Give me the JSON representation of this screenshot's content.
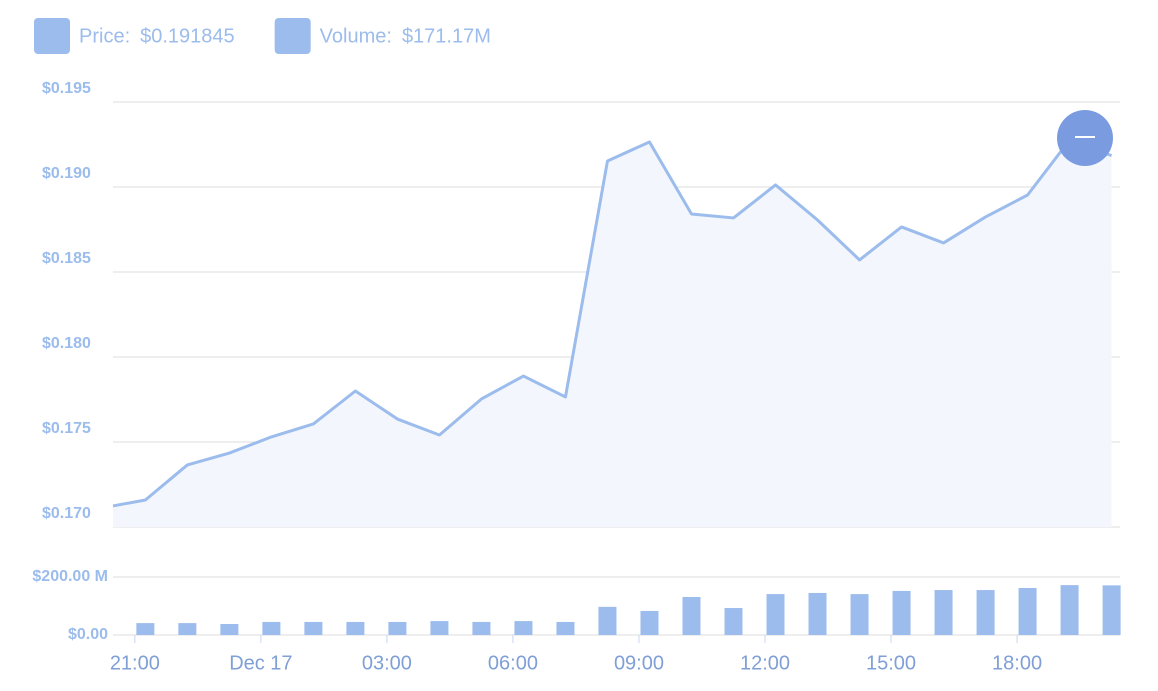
{
  "chart_data": [
    {
      "type": "area",
      "legend": [
        {
          "label": "Price:",
          "value_label": "$0.191845",
          "color": "#9bbcec"
        },
        {
          "label": "Volume:",
          "value_label": "$171.17M",
          "color": "#9bbcec"
        }
      ],
      "x": [
        20.48,
        21.25,
        22.25,
        23.25,
        24.25,
        25.25,
        26.25,
        27.25,
        28.25,
        29.25,
        30.25,
        31.25,
        32.25,
        33.25,
        34.25,
        35.25,
        36.25,
        37.25,
        38.25,
        39.25,
        40.25,
        41.25,
        42.25,
        43.25,
        44.25
      ],
      "series": [
        {
          "name": "Price",
          "color": "#9bbcec",
          "values": [
            0.17124,
            0.17159,
            0.17365,
            0.17435,
            0.1753,
            0.17606,
            0.178,
            0.17635,
            0.17541,
            0.17753,
            0.17888,
            0.17765,
            0.19153,
            0.19265,
            0.18841,
            0.18818,
            0.19012,
            0.18806,
            0.18571,
            0.18765,
            0.18671,
            0.18824,
            0.18953,
            0.19276,
            0.191845
          ]
        }
      ],
      "xlim": [
        20.48,
        44.45
      ],
      "ylim": [
        0.17,
        0.195
      ],
      "yticks": [
        {
          "value": 0.17,
          "label": "$0.170"
        },
        {
          "value": 0.175,
          "label": "$0.175"
        },
        {
          "value": 0.18,
          "label": "$0.180"
        },
        {
          "value": 0.185,
          "label": "$0.185"
        },
        {
          "value": 0.19,
          "label": "$0.190"
        },
        {
          "value": 0.195,
          "label": "$0.195"
        }
      ],
      "grid": true
    },
    {
      "type": "bar",
      "x": [
        21.25,
        22.25,
        23.25,
        24.25,
        25.25,
        26.25,
        27.25,
        28.25,
        29.25,
        30.25,
        31.25,
        32.25,
        33.25,
        34.25,
        35.25,
        36.25,
        37.25,
        38.25,
        39.25,
        40.25,
        41.25,
        42.25,
        43.25,
        44.25
      ],
      "values": [
        41000000,
        41000000,
        38000000,
        45000000,
        45000000,
        45000000,
        45000000,
        48000000,
        45000000,
        48000000,
        45000000,
        97000000,
        83000000,
        131000000,
        93000000,
        141000000,
        145000000,
        141000000,
        152000000,
        155000000,
        155000000,
        162000000,
        172000000,
        171170000
      ],
      "color": "#9bbcec",
      "xlim": [
        20.48,
        44.45
      ],
      "ylim": [
        0,
        200000000
      ],
      "yticks": [
        {
          "value": 0,
          "label": "$0.00"
        },
        {
          "value": 200000000,
          "label": "$200.00 M"
        }
      ],
      "xticks": [
        {
          "value": 21,
          "label": "21:00"
        },
        {
          "value": 24,
          "label": "Dec 17"
        },
        {
          "value": 27,
          "label": "03:00"
        },
        {
          "value": 30,
          "label": "06:00"
        },
        {
          "value": 33,
          "label": "09:00"
        },
        {
          "value": 36,
          "label": "12:00"
        },
        {
          "value": 39,
          "label": "15:00"
        },
        {
          "value": 42,
          "label": "18:00"
        }
      ],
      "grid": true
    }
  ]
}
